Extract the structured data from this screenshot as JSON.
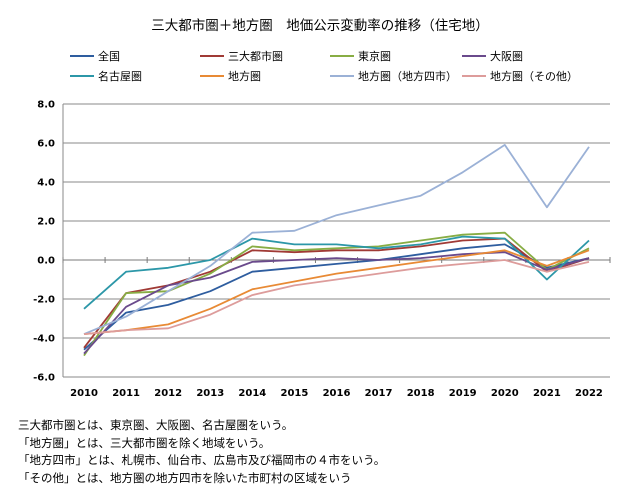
{
  "chart_data": {
    "type": "line",
    "title": "三大都市圏＋地方圏　地価公示変動率の推移（住宅地）",
    "xlabel": "",
    "ylabel": "",
    "categories": [
      "2010",
      "2011",
      "2012",
      "2013",
      "2014",
      "2015",
      "2016",
      "2017",
      "2018",
      "2019",
      "2020",
      "2021",
      "2022"
    ],
    "y_ticks": [
      "8.0",
      "6.0",
      "4.0",
      "2.0",
      "0.0",
      "-2.0",
      "-4.0",
      "-6.0"
    ],
    "ylim": [
      -6,
      8
    ],
    "grid": true,
    "legend_position": "top",
    "series": [
      {
        "name": "全国",
        "color": "#2e5d9f",
        "values": [
          -4.6,
          -2.7,
          -2.3,
          -1.6,
          -0.6,
          -0.4,
          -0.2,
          0.0,
          0.3,
          0.6,
          0.8,
          -0.4,
          0.1
        ]
      },
      {
        "name": "三大都市圏",
        "color": "#a03a35",
        "values": [
          -4.5,
          -1.7,
          -1.3,
          -0.6,
          0.5,
          0.4,
          0.5,
          0.5,
          0.7,
          1.0,
          1.1,
          -0.6,
          0.1
        ]
      },
      {
        "name": "東京圏",
        "color": "#88ad44",
        "values": [
          -4.9,
          -1.7,
          -1.6,
          -0.7,
          0.7,
          0.5,
          0.6,
          0.7,
          1.0,
          1.3,
          1.4,
          -0.5,
          0.6
        ]
      },
      {
        "name": "大阪圏",
        "color": "#6a4a8c",
        "values": [
          -4.8,
          -2.4,
          -1.3,
          -0.9,
          -0.1,
          0.0,
          0.1,
          0.0,
          0.1,
          0.3,
          0.4,
          -0.5,
          0.1
        ]
      },
      {
        "name": "名古屋圏",
        "color": "#2c97a8",
        "values": [
          -2.5,
          -0.6,
          -0.4,
          0.0,
          1.1,
          0.8,
          0.8,
          0.6,
          0.8,
          1.2,
          1.1,
          -1.0,
          1.0
        ]
      },
      {
        "name": "地方圏",
        "color": "#e88a35",
        "values": [
          -3.8,
          -3.6,
          -3.3,
          -2.5,
          -1.5,
          -1.1,
          -0.7,
          -0.4,
          -0.1,
          0.2,
          0.5,
          -0.3,
          0.5
        ]
      },
      {
        "name": "地方圏（地方四市）",
        "color": "#9bb1d6",
        "values": [
          -3.8,
          -2.9,
          -1.6,
          -0.3,
          1.4,
          1.5,
          2.3,
          2.8,
          3.3,
          4.5,
          5.9,
          2.7,
          5.8
        ]
      },
      {
        "name": "地方圏（その他）",
        "color": "#dd9c9b",
        "values": [
          -3.8,
          -3.6,
          -3.5,
          -2.8,
          -1.8,
          -1.3,
          -1.0,
          -0.7,
          -0.4,
          -0.2,
          0.0,
          -0.6,
          -0.1
        ]
      }
    ]
  },
  "notes": [
    "三大都市圏とは、東京圏、大阪圏、名古屋圏をいう。",
    "「地方圏」とは、三大都市圏を除く地域をいう。",
    "「地方四市」とは、札幌市、仙台市、広島市及び福岡市の４市をいう。",
    "「その他」とは、地方圏の地方四市を除いた市町村の区域をいう"
  ]
}
